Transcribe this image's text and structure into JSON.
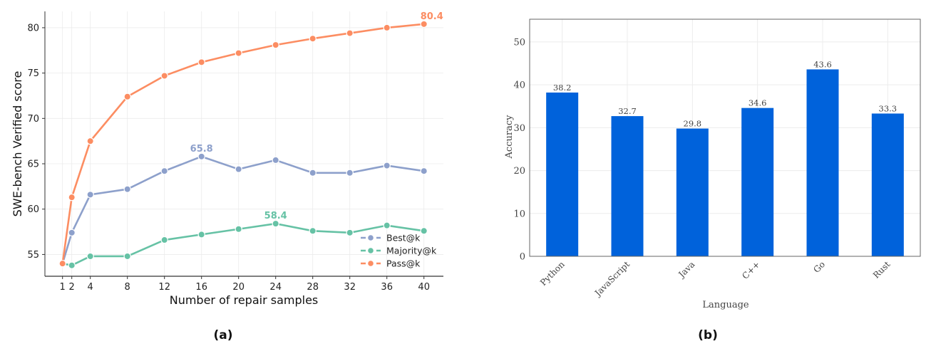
{
  "chart_data": [
    {
      "id": "a",
      "type": "line",
      "caption": "(a)",
      "title": "",
      "xlabel": "Number of repair samples",
      "ylabel": "SWE-bench Verified score",
      "x": [
        1,
        2,
        4,
        8,
        12,
        16,
        20,
        24,
        28,
        32,
        36,
        40
      ],
      "x_ticks": [
        "1",
        "2",
        "4",
        "8",
        "12",
        "16",
        "20",
        "24",
        "28",
        "32",
        "36",
        "40"
      ],
      "y_ticks": [
        "55",
        "60",
        "65",
        "70",
        "75",
        "80"
      ],
      "y_tick_values": [
        55,
        60,
        65,
        70,
        75,
        80
      ],
      "xlim": [
        -0.9,
        42.1
      ],
      "ylim": [
        52.6,
        81.8
      ],
      "grid": true,
      "legend_position": "bottom-right",
      "series": [
        {
          "name": "Best@k",
          "color": "#8DA0CB",
          "values": [
            54.0,
            57.4,
            61.6,
            62.2,
            64.2,
            65.8,
            64.4,
            65.4,
            64.0,
            64.0,
            64.8,
            64.2
          ],
          "annotation": {
            "x": 16,
            "text": "65.8"
          }
        },
        {
          "name": "Majority@k",
          "color": "#66C2A5",
          "values": [
            54.0,
            53.8,
            54.8,
            54.8,
            56.6,
            57.2,
            57.8,
            58.4,
            57.6,
            57.4,
            58.2,
            57.6
          ],
          "annotation": {
            "x": 24,
            "text": "58.4"
          }
        },
        {
          "name": "Pass@k",
          "color": "#FC8D62",
          "values": [
            54.0,
            61.3,
            67.5,
            72.4,
            74.7,
            76.2,
            77.2,
            78.1,
            78.8,
            79.4,
            80.0,
            80.4
          ],
          "annotation": {
            "x": 40,
            "text": "80.4"
          }
        }
      ]
    },
    {
      "id": "b",
      "type": "bar",
      "caption": "(b)",
      "title": "",
      "xlabel": "Language",
      "ylabel": "Accuracy",
      "categories": [
        "Python",
        "JavaScript",
        "Java",
        "C++",
        "Go",
        "Rust"
      ],
      "values": [
        38.2,
        32.7,
        29.8,
        34.6,
        43.6,
        33.3
      ],
      "value_labels": [
        "38.2",
        "32.7",
        "29.8",
        "34.6",
        "43.6",
        "33.3"
      ],
      "y_ticks": [
        "0",
        "10",
        "20",
        "30",
        "40",
        "50"
      ],
      "y_tick_values": [
        0,
        10,
        20,
        30,
        40,
        50
      ],
      "ylim": [
        0,
        55.3
      ],
      "grid": true,
      "bar_color": "#0062DB"
    }
  ]
}
